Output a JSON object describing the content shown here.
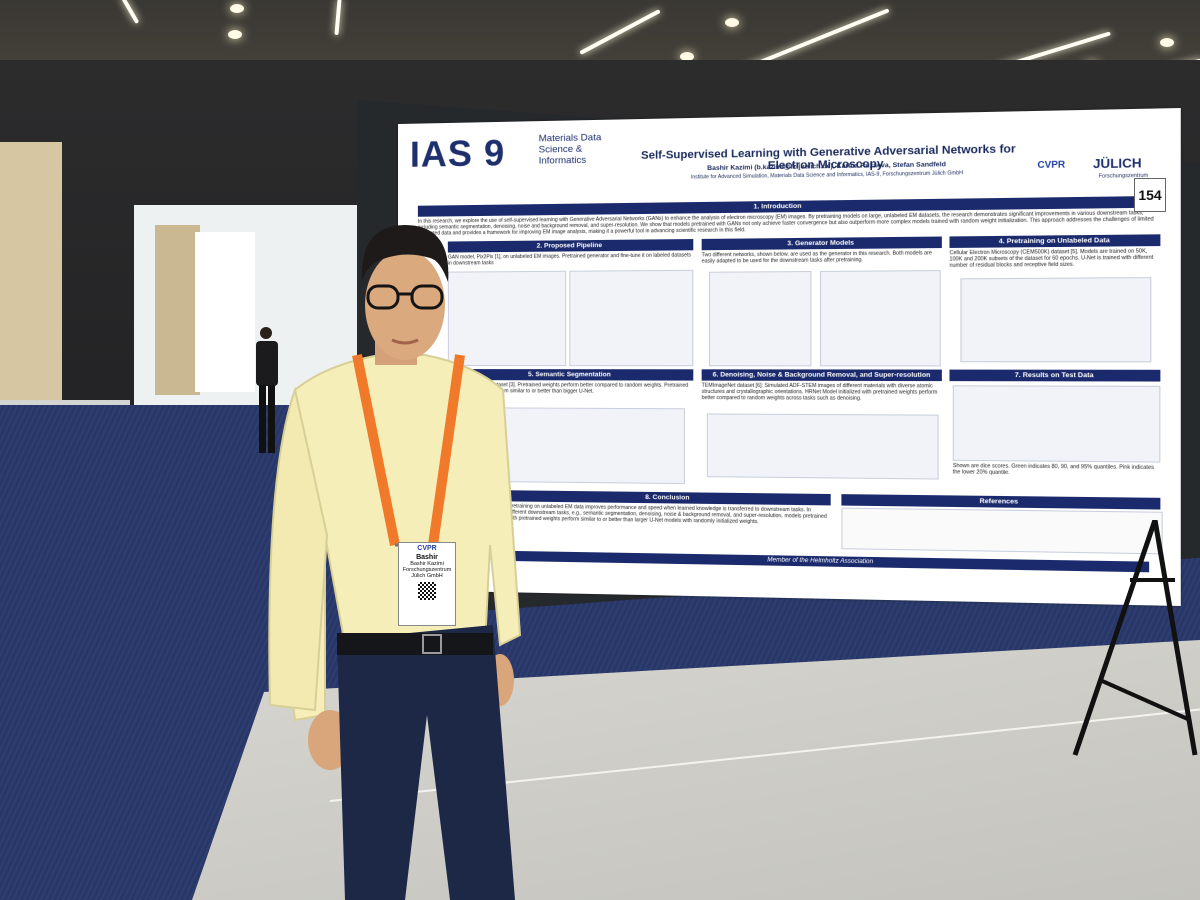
{
  "poster": {
    "number": "154",
    "logo_text": "IAS 9",
    "logo_subtitle": "Materials Data Science & Informatics",
    "title": "Self-Supervised Learning with Generative Adversarial Networks for Electron Microscopy",
    "authors": "Bashir Kazimi (b.kazimi@fz-juelich.de), Karina Ruzaeva, Stefan Sandfeld",
    "institute": "Institute for Advanced Simulation, Materials Data Science and Informatics, IAS-9, Forschungszentrum Jülich GmbH",
    "cvpr_logo": "CVPR",
    "julich_logo": "JÜLICH",
    "julich_sub": "Forschungszentrum",
    "sections": [
      {
        "title": "1. Introduction",
        "text": "In this research, we explore the use of self-supervised learning with Generative Adversarial Networks (GANs) to enhance the analysis of electron microscopy (EM) images. By pretraining models on large, unlabeled EM datasets, the research demonstrates significant improvements in various downstream tasks, including semantic segmentation, denoising, noise and background removal, and super-resolution. We show that models pretrained with GANs not only achieve faster convergence but also outperform more complex models trained with random weight initialization. This approach addresses the challenges of limited annotated data and provides a framework for improving EM image analysis, making it a powerful tool in advancing scientific research in this field."
      },
      {
        "title": "2. Proposed Pipeline",
        "text": "GAN model, Pix2Pix [1], on unlabeled EM images. Pretrained generator and fine-tune it on labeled datasets in downstream tasks"
      },
      {
        "title": "3. Generator Models",
        "text": "Two different networks, shown below, are used as the generator in this research. Both models are easily adapted to be used for the downstream tasks after pretraining."
      },
      {
        "title": "4. Pretraining on Unlabeled Data",
        "text": "Cellular Electron Microscopy (CEM500K) dataset [5]. Models are trained on 50K, 100K and 200K subsets of the dataset for 60 epochs. U-Net is trained with different number of residual blocks and receptive field sizes."
      },
      {
        "title": "5. Semantic Segmentation",
        "text": "Gold nanoparticles dataset [3]. Pretrained weights perform better compared to random weights. Pretrained weight initialization perform similar to or better than bigger U-Net."
      },
      {
        "title": "6. Denoising, Noise & Background Removal, and Super-resolution",
        "text": "TEMImageNet dataset [6]: Simulated ADF-STEM images of different materials with diverse atomic structures and crystallographic orientations. HRNet Model initialized with pretrained weights perform better compared to random weights across tasks such as denoising."
      },
      {
        "title": "7. Results on Test Data",
        "text": "Shown are dice scores. Green indicates 80, 90, and 95% quantiles. Pink indicates the lower 20% quantile."
      },
      {
        "title": "8. Conclusion",
        "text": "Pretraining on unlabeled EM data improves performance and speed when learned knowledge is transferred to downstream tasks. In different downstream tasks, e.g., semantic segmentation, denoising, noise & background removal, and super-resolution, models pretrained with pretrained weights perform similar to or better than larger U-Net models with randomly initialized weights."
      },
      {
        "title": "References",
        "text": ""
      }
    ],
    "footer": "Member of the Helmholtz Association"
  },
  "badge": {
    "event": "CVPR",
    "first_name": "Bashir",
    "full_name": "Bashir Kazimi",
    "affiliation": "Forschungszentrum Jülich GmbH"
  },
  "colors": {
    "poster_accent": "#1a2a6c",
    "lanyard": "#f07a2a",
    "shirt": "#f6eeb9",
    "carpet": "#2e3e72"
  }
}
